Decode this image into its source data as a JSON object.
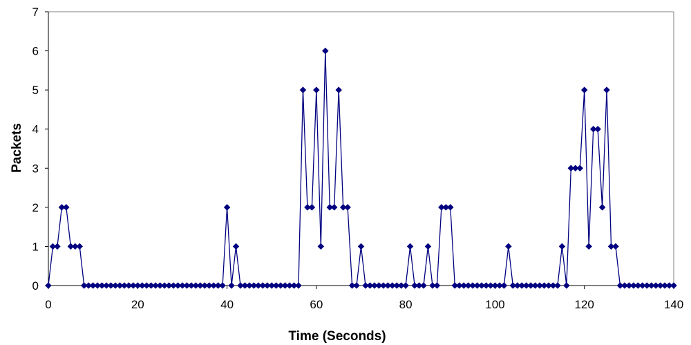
{
  "chart_data": {
    "type": "line",
    "title": "",
    "xlabel": "Time (Seconds)",
    "ylabel": "Packets",
    "xlim": [
      0,
      140
    ],
    "ylim": [
      0,
      7
    ],
    "x_ticks": [
      0,
      20,
      40,
      60,
      80,
      100,
      120,
      140
    ],
    "y_ticks": [
      0,
      1,
      2,
      3,
      4,
      5,
      6,
      7
    ],
    "grid": false,
    "legend": "none",
    "marker": "diamond",
    "series": [
      {
        "color": "#000080",
        "x": [
          0,
          1,
          2,
          3,
          4,
          5,
          6,
          7,
          8,
          9,
          10,
          11,
          12,
          13,
          14,
          15,
          16,
          17,
          18,
          19,
          20,
          21,
          22,
          23,
          24,
          25,
          26,
          27,
          28,
          29,
          30,
          31,
          32,
          33,
          34,
          35,
          36,
          37,
          38,
          39,
          40,
          41,
          42,
          43,
          44,
          45,
          46,
          47,
          48,
          49,
          50,
          51,
          52,
          53,
          54,
          55,
          56,
          57,
          58,
          59,
          60,
          61,
          62,
          63,
          64,
          65,
          66,
          67,
          68,
          69,
          70,
          71,
          72,
          73,
          74,
          75,
          76,
          77,
          78,
          79,
          80,
          81,
          82,
          83,
          84,
          85,
          86,
          87,
          88,
          89,
          90,
          91,
          92,
          93,
          94,
          95,
          96,
          97,
          98,
          99,
          100,
          101,
          102,
          103,
          104,
          105,
          106,
          107,
          108,
          109,
          110,
          111,
          112,
          113,
          114,
          115,
          116,
          117,
          118,
          119,
          120,
          121,
          122,
          123,
          124,
          125,
          126,
          127,
          128,
          129,
          130,
          131,
          132,
          133,
          134,
          135,
          136,
          137,
          138,
          139,
          140
        ],
        "values": [
          0,
          1,
          1,
          2,
          2,
          1,
          1,
          1,
          0,
          0,
          0,
          0,
          0,
          0,
          0,
          0,
          0,
          0,
          0,
          0,
          0,
          0,
          0,
          0,
          0,
          0,
          0,
          0,
          0,
          0,
          0,
          0,
          0,
          0,
          0,
          0,
          0,
          0,
          0,
          0,
          2,
          0,
          1,
          0,
          0,
          0,
          0,
          0,
          0,
          0,
          0,
          0,
          0,
          0,
          0,
          0,
          0,
          5,
          2,
          2,
          5,
          1,
          6,
          2,
          2,
          5,
          2,
          2,
          0,
          0,
          1,
          0,
          0,
          0,
          0,
          0,
          0,
          0,
          0,
          0,
          0,
          1,
          0,
          0,
          0,
          1,
          0,
          0,
          2,
          2,
          2,
          0,
          0,
          0,
          0,
          0,
          0,
          0,
          0,
          0,
          0,
          0,
          0,
          1,
          0,
          0,
          0,
          0,
          0,
          0,
          0,
          0,
          0,
          0,
          0,
          1,
          0,
          3,
          3,
          3,
          5,
          1,
          4,
          4,
          2,
          5,
          1,
          1,
          0,
          0,
          0,
          0,
          0,
          0,
          0,
          0,
          0,
          0,
          0,
          0,
          0
        ]
      }
    ]
  }
}
